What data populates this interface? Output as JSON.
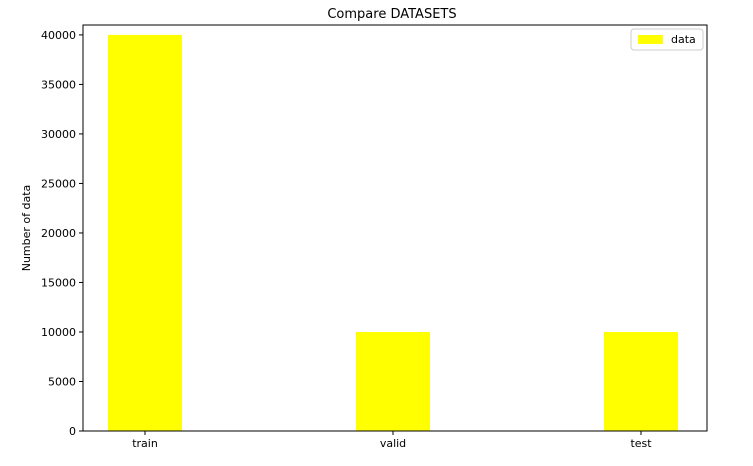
{
  "chart_data": {
    "type": "bar",
    "title": "Compare DATASETS",
    "xlabel": "",
    "ylabel": "Number of data",
    "categories": [
      "train",
      "valid",
      "test"
    ],
    "series": [
      {
        "name": "data",
        "values": [
          40000,
          10000,
          10000
        ]
      }
    ],
    "ylim": [
      0,
      41000
    ],
    "yticks": [
      0,
      5000,
      10000,
      15000,
      20000,
      25000,
      30000,
      35000,
      40000
    ],
    "bar_color": "#ffff00",
    "grid": false,
    "legend_position": "top-right"
  }
}
